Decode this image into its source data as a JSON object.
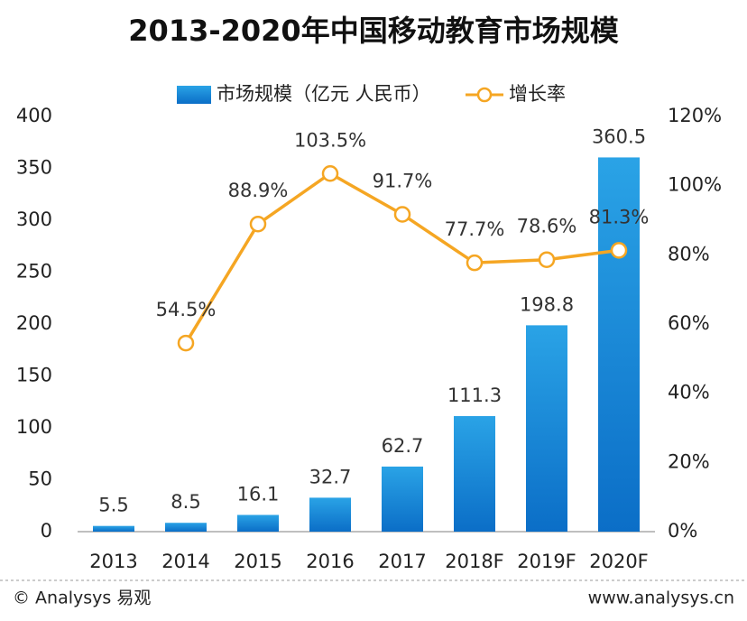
{
  "chart_data": {
    "type": "bar+line",
    "title": "2013-2020年中国移动教育市场规模",
    "categories": [
      "2013",
      "2014",
      "2015",
      "2016",
      "2017",
      "2018F",
      "2019F",
      "2020F"
    ],
    "series": [
      {
        "name": "市场规模（亿元 人民币）",
        "type": "bar",
        "color": "#1a8ad8",
        "values": [
          5.5,
          8.5,
          16.1,
          32.7,
          62.7,
          111.3,
          198.8,
          360.5
        ]
      },
      {
        "name": "增长率",
        "type": "line",
        "axis": "y2",
        "color": "#f5a623",
        "values": [
          null,
          54.5,
          88.9,
          103.5,
          91.7,
          77.7,
          78.6,
          81.3
        ],
        "value_labels": [
          null,
          "54.5%",
          "88.9%",
          "103.5%",
          "91.7%",
          "77.7%",
          "78.6%",
          "81.3%"
        ]
      }
    ],
    "ylim": [
      0,
      400
    ],
    "yticks": [
      0,
      50,
      100,
      150,
      200,
      250,
      300,
      350,
      400
    ],
    "y2lim": [
      0,
      120
    ],
    "y2ticks": [
      {
        "value": 0,
        "label": "0%"
      },
      {
        "value": 20,
        "label": "20%"
      },
      {
        "value": 40,
        "label": "40%"
      },
      {
        "value": 60,
        "label": "60%"
      },
      {
        "value": 80,
        "label": "80%"
      },
      {
        "value": 100,
        "label": "100%"
      },
      {
        "value": 120,
        "label": "120%"
      }
    ],
    "legend": "top",
    "source": "© Analysys 易观",
    "website": "www.analysys.cn"
  }
}
